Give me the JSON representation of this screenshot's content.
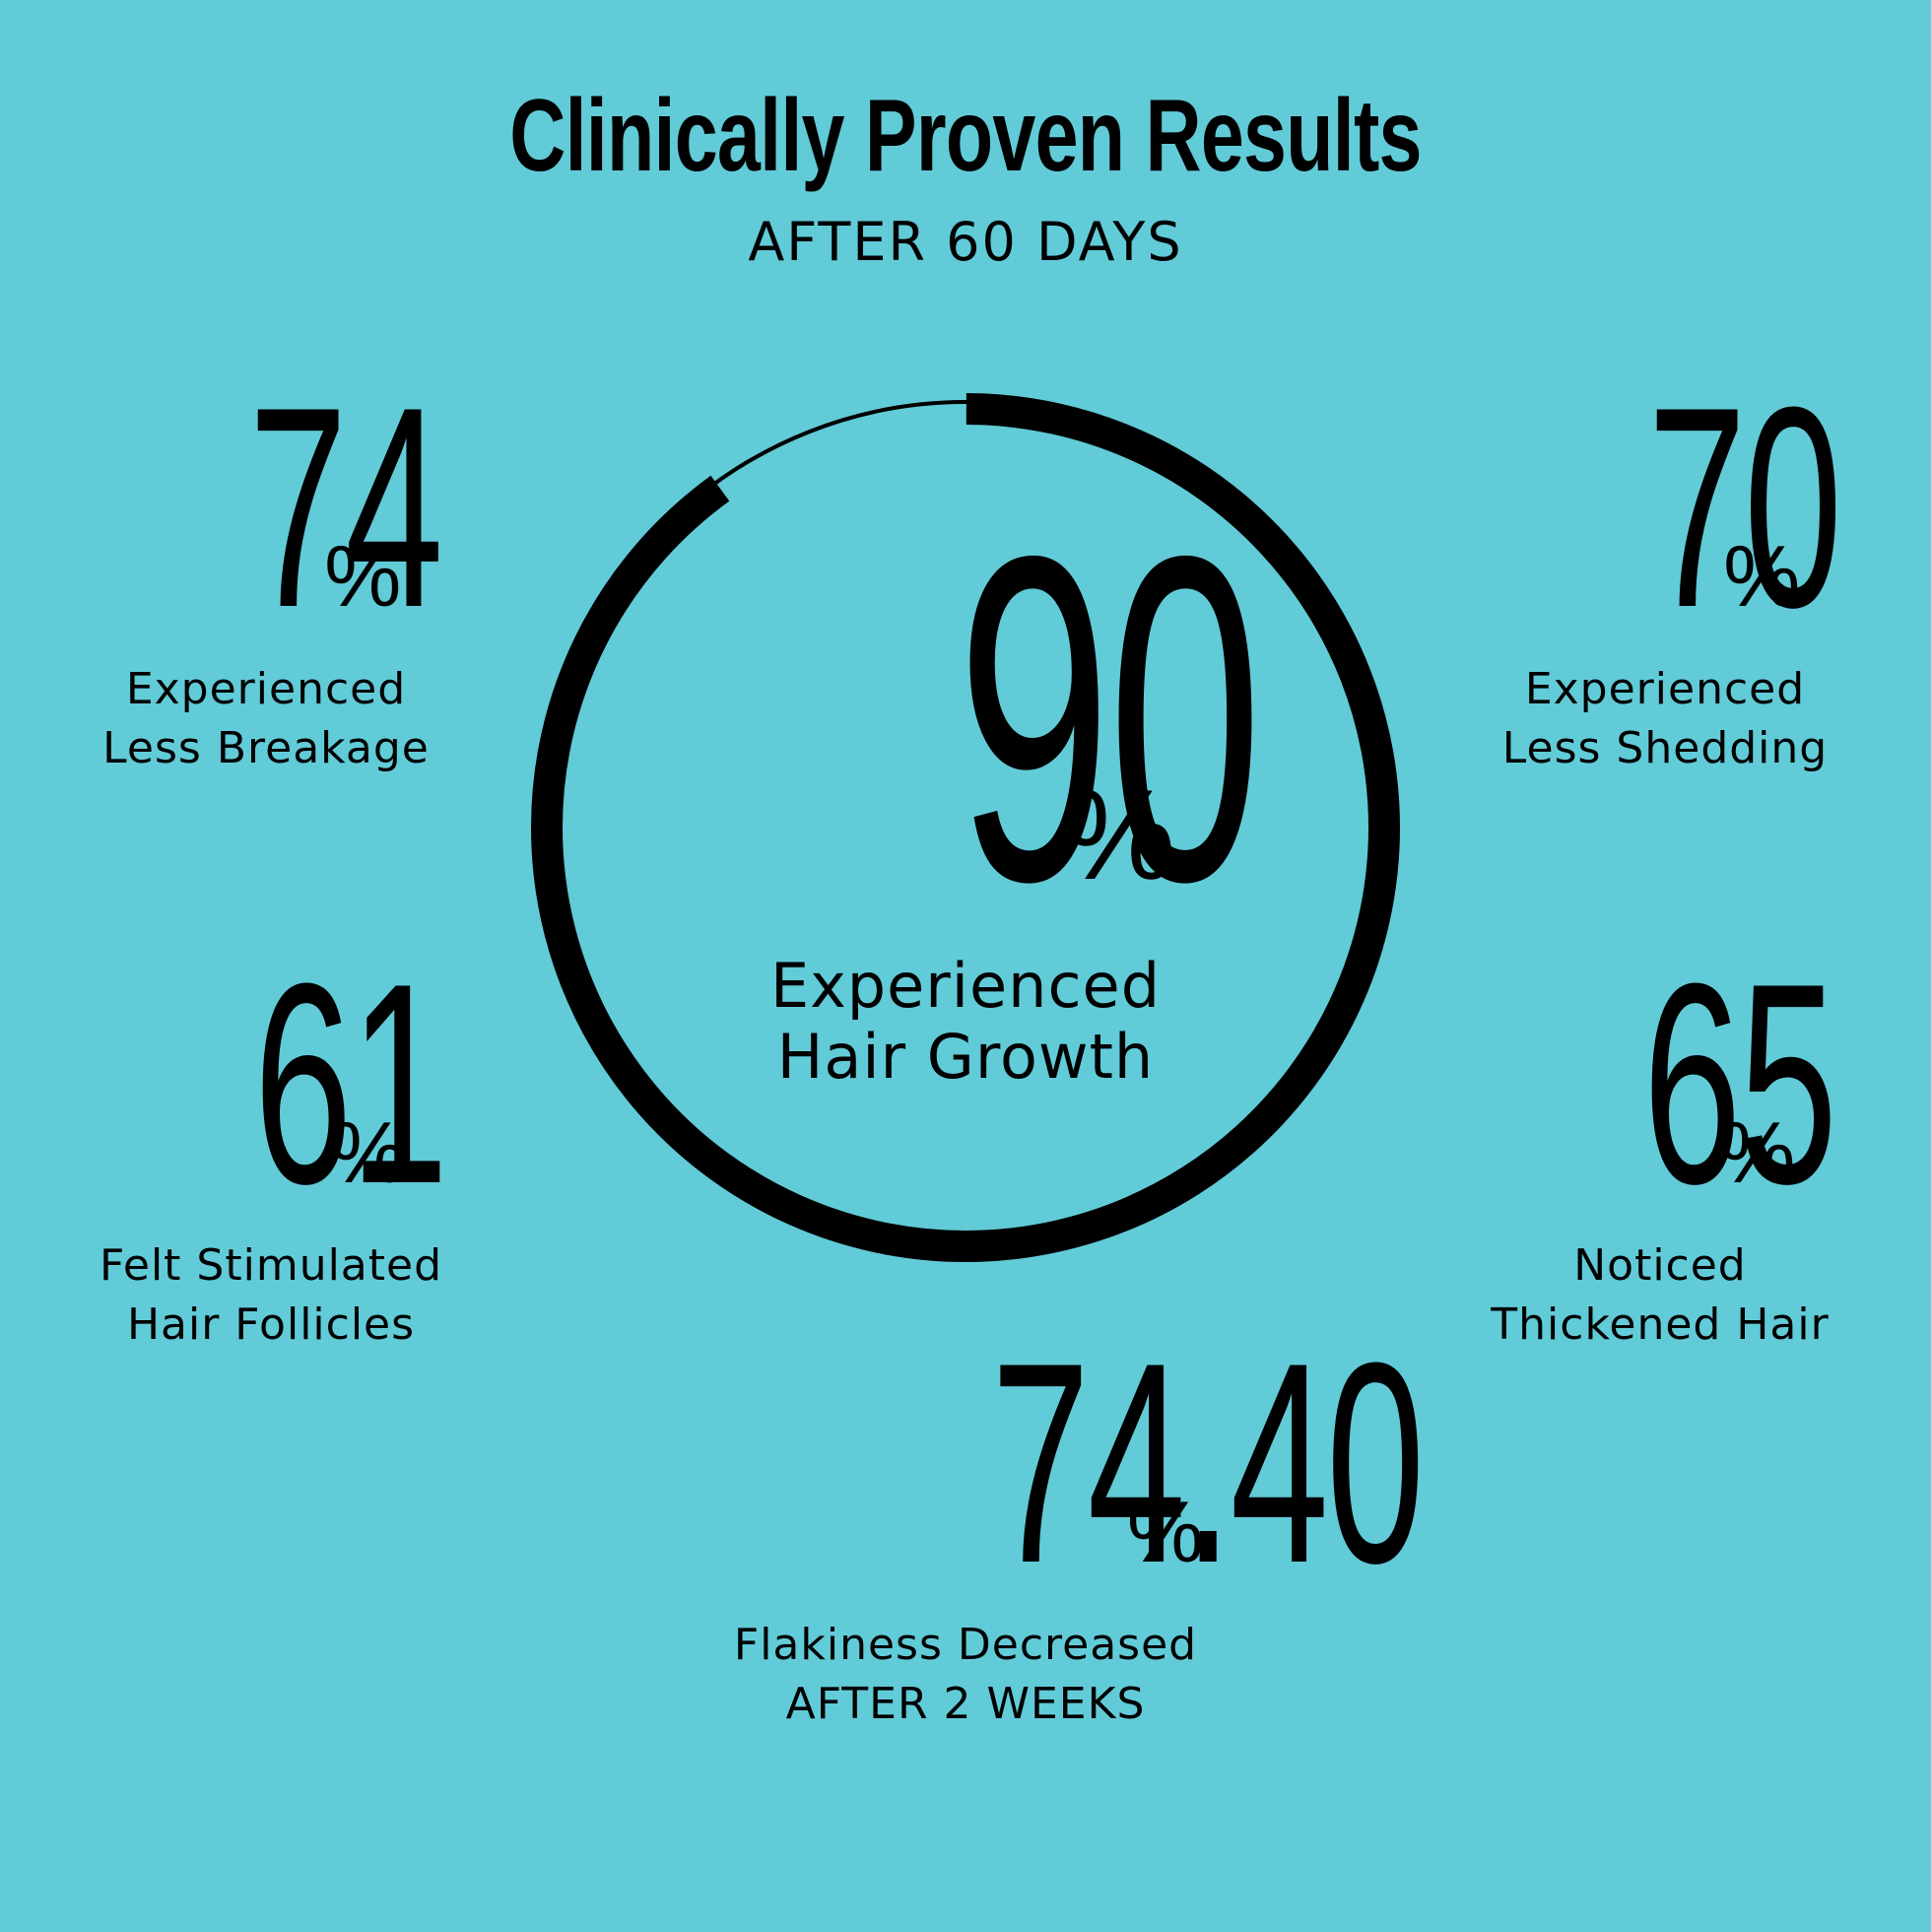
{
  "header": {
    "title": "Clinically Proven Results",
    "subtitle": "AFTER 60 DAYS"
  },
  "colors": {
    "background": "#62cbd8",
    "foreground": "#000000"
  },
  "center_stat": {
    "value": "90",
    "unit": "%",
    "label_line1": "Experienced",
    "label_line2": "Hair Growth",
    "ring_progress_fraction": 0.9
  },
  "stats": {
    "top_left": {
      "value": "74",
      "unit": "%",
      "label_line1": "Experienced",
      "label_line2": "Less Breakage"
    },
    "top_right": {
      "value": "70",
      "unit": "%",
      "label_line1": "Experienced",
      "label_line2": "Less Shedding"
    },
    "middle_left": {
      "value": "61",
      "unit": "%",
      "label_line1": "Felt Stimulated",
      "label_line2": "Hair Follicles"
    },
    "middle_right": {
      "value": "65",
      "unit": "%",
      "label_line1": "Noticed",
      "label_line2": "Thickened Hair"
    },
    "bottom": {
      "value": "74.40",
      "unit": "%",
      "label_line1": "Flakiness Decreased",
      "label_line2": "AFTER 2 WEEKS"
    }
  }
}
